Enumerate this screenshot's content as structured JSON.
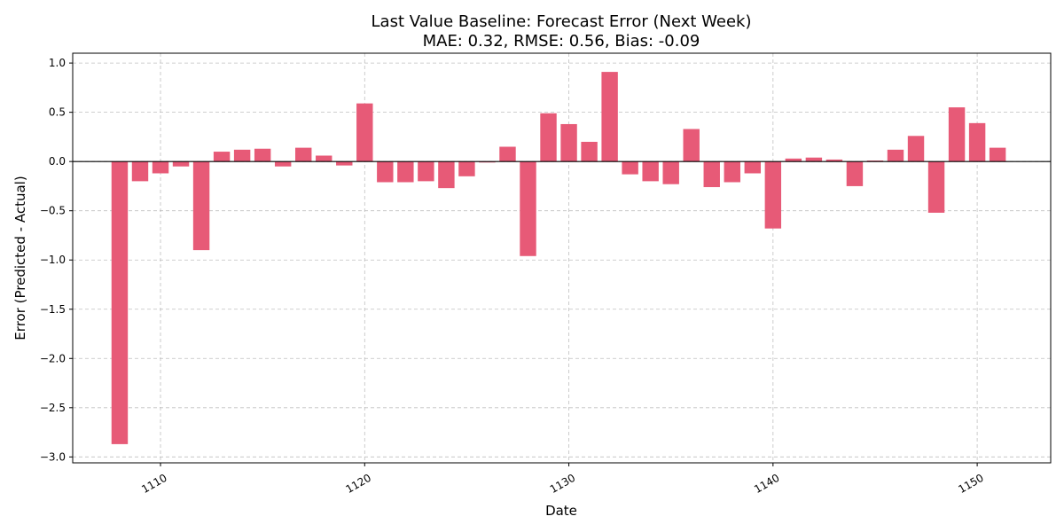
{
  "chart_data": {
    "type": "bar",
    "title": "Last Value Baseline: Forecast Error (Next Week)",
    "subtitle": "MAE: 0.32, RMSE: 0.56, Bias: -0.09",
    "xlabel": "Date",
    "ylabel": "Error (Predicted - Actual)",
    "xlim": [
      1105.7,
      1153.6
    ],
    "ylim": [
      -3.06,
      1.1
    ],
    "xticks": [
      1110,
      1120,
      1130,
      1140,
      1150
    ],
    "yticks": [
      -3.0,
      -2.5,
      -2.0,
      -1.5,
      -1.0,
      -0.5,
      0.0,
      0.5,
      1.0
    ],
    "ytick_labels": [
      "−3.0",
      "−2.5",
      "−2.0",
      "−1.5",
      "−1.0",
      "−0.5",
      "0.0",
      "0.5",
      "1.0"
    ],
    "grid": true,
    "zero_line": true,
    "bar_color": "#e75a77",
    "x": [
      1108,
      1109,
      1110,
      1111,
      1112,
      1113,
      1114,
      1115,
      1116,
      1117,
      1118,
      1119,
      1120,
      1121,
      1122,
      1123,
      1124,
      1125,
      1126,
      1127,
      1128,
      1129,
      1130,
      1131,
      1132,
      1133,
      1134,
      1135,
      1136,
      1137,
      1138,
      1139,
      1140,
      1141,
      1142,
      1143,
      1144,
      1145,
      1146,
      1147,
      1148,
      1149,
      1150,
      1151
    ],
    "values": [
      -2.87,
      -0.2,
      -0.12,
      -0.05,
      -0.9,
      0.1,
      0.12,
      0.13,
      -0.05,
      0.14,
      0.06,
      -0.04,
      0.59,
      -0.21,
      -0.21,
      -0.2,
      -0.27,
      -0.15,
      -0.01,
      0.15,
      -0.96,
      0.49,
      0.38,
      0.2,
      0.91,
      -0.13,
      -0.2,
      -0.23,
      0.33,
      -0.26,
      -0.21,
      -0.12,
      -0.68,
      0.03,
      0.04,
      0.02,
      -0.25,
      0.01,
      0.12,
      0.26,
      -0.52,
      0.55,
      0.39,
      0.14
    ]
  }
}
